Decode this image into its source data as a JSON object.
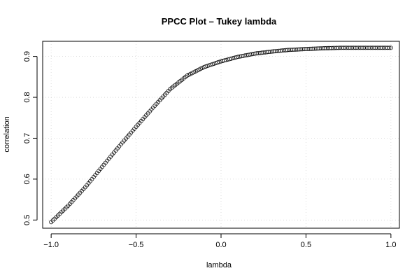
{
  "chart_data": {
    "type": "scatter",
    "title": "PPCC Plot – Tukey lambda",
    "xlabel": "lambda",
    "ylabel": "correlation",
    "xlim": [
      -1.05,
      1.05
    ],
    "ylim": [
      0.48,
      0.937
    ],
    "xticks": [
      -1.0,
      -0.5,
      0.0,
      0.5,
      1.0
    ],
    "xtick_labels": [
      "−1.0",
      "−0.5",
      "0.0",
      "0.5",
      "1.0"
    ],
    "yticks": [
      0.5,
      0.6,
      0.7,
      0.8,
      0.9
    ],
    "ytick_labels": [
      "0.5",
      "0.6",
      "0.7",
      "0.8",
      "0.9"
    ],
    "grid": true,
    "marker": "open-circle",
    "x": [
      -1.0,
      -0.9,
      -0.8,
      -0.7,
      -0.6,
      -0.5,
      -0.4,
      -0.3,
      -0.2,
      -0.1,
      0.0,
      0.1,
      0.2,
      0.3,
      0.4,
      0.5,
      0.6,
      0.7,
      0.8,
      0.9,
      1.0
    ],
    "y": [
      0.495,
      0.535,
      0.58,
      0.63,
      0.68,
      0.728,
      0.775,
      0.82,
      0.853,
      0.874,
      0.888,
      0.899,
      0.907,
      0.912,
      0.916,
      0.918,
      0.92,
      0.921,
      0.921,
      0.921,
      0.921
    ],
    "point_count": 201
  }
}
